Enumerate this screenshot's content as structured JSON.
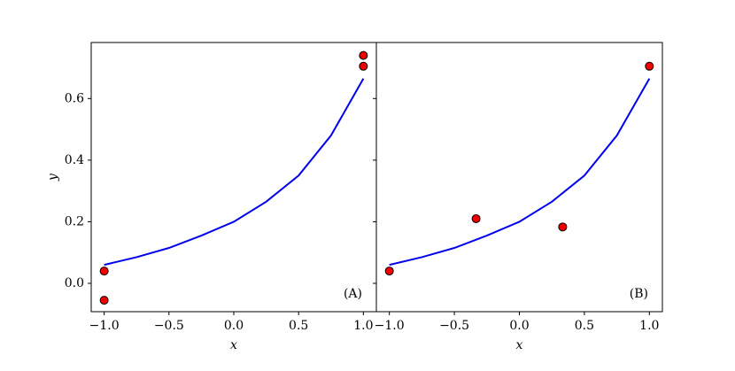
{
  "chart_data": [
    {
      "type": "scatter",
      "annotation": "(A)",
      "xlabel": "x",
      "ylabel": "y",
      "xlim": [
        -1.1,
        1.1
      ],
      "ylim": [
        -0.092,
        0.782
      ],
      "xticks": [
        {
          "value": -1,
          "label": "−1.0"
        },
        {
          "value": -0.5,
          "label": "−0.5"
        },
        {
          "value": 0,
          "label": "0.0"
        },
        0.5,
        {
          "value": 1,
          "label": "1.0"
        }
      ],
      "yticks": [
        {
          "value": 0,
          "label": "0.0"
        },
        0.2,
        0.4,
        0.6
      ],
      "curve": {
        "color": "#0000ee",
        "x": [
          -1,
          -0.75,
          -0.5,
          -0.25,
          0,
          0.25,
          0.5,
          0.75,
          1
        ],
        "y": [
          0.06,
          0.085,
          0.115,
          0.155,
          0.2,
          0.265,
          0.35,
          0.48,
          0.665
        ]
      },
      "points": {
        "color": "#ee0000",
        "x": [
          -1,
          -1,
          1,
          1
        ],
        "y": [
          0.04,
          -0.055,
          0.74,
          0.705
        ]
      }
    },
    {
      "type": "scatter",
      "annotation": "(B)",
      "xlabel": "x",
      "xlim": [
        -1.1,
        1.1
      ],
      "ylim": [
        -0.092,
        0.782
      ],
      "xticks": [
        {
          "value": -1,
          "label": "−1.0"
        },
        {
          "value": -0.5,
          "label": "−0.5"
        },
        {
          "value": 0,
          "label": "0.0"
        },
        0.5,
        {
          "value": 1,
          "label": "1.0"
        }
      ],
      "curve": {
        "color": "#0000ee",
        "x": [
          -1,
          -0.75,
          -0.5,
          -0.25,
          0,
          0.25,
          0.5,
          0.75,
          1
        ],
        "y": [
          0.06,
          0.085,
          0.115,
          0.155,
          0.2,
          0.265,
          0.35,
          0.48,
          0.665
        ]
      },
      "points": {
        "color": "#ee0000",
        "x": [
          -1,
          -0.333,
          0.333,
          1
        ],
        "y": [
          0.04,
          0.21,
          0.183,
          0.705
        ]
      }
    }
  ]
}
